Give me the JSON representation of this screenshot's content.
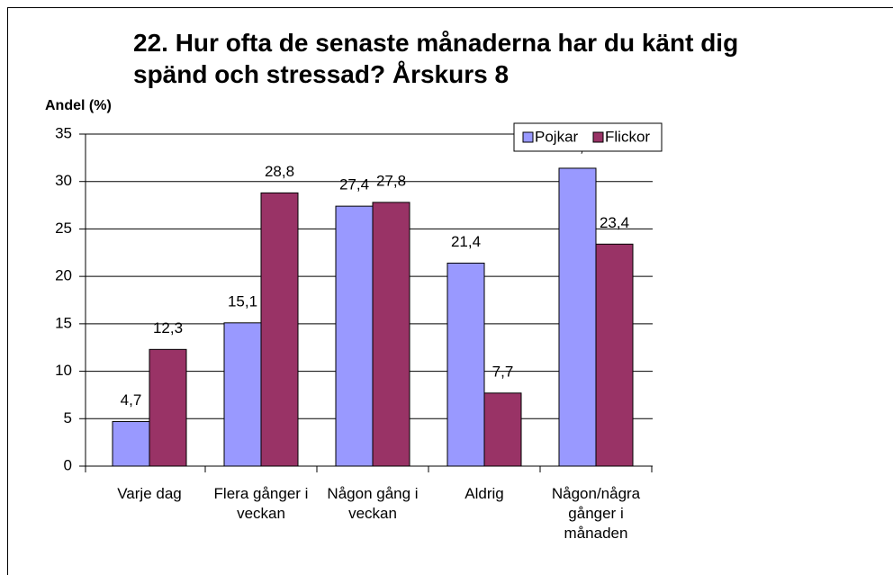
{
  "chart_data": {
    "type": "bar",
    "title": "22. Hur ofta de senaste månaderna har du känt dig spänd och stressad? Årskurs 8",
    "y_label": "Andel (%)",
    "categories": [
      "Varje dag",
      "Flera gånger i veckan",
      "Någon gång i veckan",
      "Aldrig",
      "Någon/några gånger i månaden"
    ],
    "series": [
      {
        "name": "Pojkar",
        "color": "#9999ff",
        "values": [
          4.7,
          15.1,
          27.4,
          21.4,
          31.4
        ],
        "value_labels": [
          "4,7",
          "15,1",
          "27,4",
          "21,4",
          "31,4"
        ]
      },
      {
        "name": "Flickor",
        "color": "#993366",
        "values": [
          12.3,
          28.8,
          27.8,
          7.7,
          23.4
        ],
        "value_labels": [
          "12,3",
          "28,8",
          "27,8",
          "7,7",
          "23,4"
        ]
      }
    ],
    "ylim": [
      0,
      35
    ],
    "yticks": [
      0,
      5,
      10,
      15,
      20,
      25,
      30,
      35
    ],
    "grid": true,
    "legend": "top-right"
  }
}
